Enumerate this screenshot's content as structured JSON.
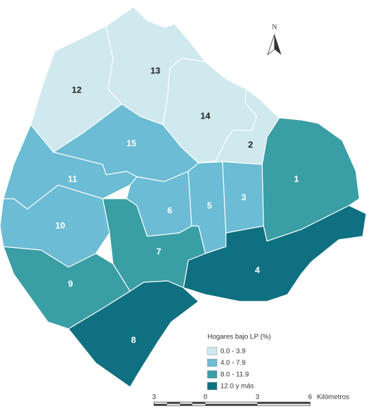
{
  "map": {
    "regions": [
      {
        "label": "1",
        "color": "#3a9ea5"
      },
      {
        "label": "2",
        "color": "#cfe9ef"
      },
      {
        "label": "3",
        "color": "#6bbcd4"
      },
      {
        "label": "4",
        "color": "#0e7080"
      },
      {
        "label": "5",
        "color": "#6bbcd4"
      },
      {
        "label": "6",
        "color": "#6bbcd4"
      },
      {
        "label": "7",
        "color": "#3a9ea5"
      },
      {
        "label": "8",
        "color": "#0e7080"
      },
      {
        "label": "9",
        "color": "#3a9ea5"
      },
      {
        "label": "10",
        "color": "#6bbcd4"
      },
      {
        "label": "11",
        "color": "#6bbcd4"
      },
      {
        "label": "12",
        "color": "#cfe9ef"
      },
      {
        "label": "13",
        "color": "#cfe9ef"
      },
      {
        "label": "14",
        "color": "#cfe9ef"
      },
      {
        "label": "15",
        "color": "#6bbcd4"
      }
    ],
    "north": "N",
    "legend": {
      "title": "Hogares bajo LP (%)",
      "items": [
        {
          "label": "0.0 - 3.9",
          "color": "#cfe9ef"
        },
        {
          "label": "4.0 - 7.9",
          "color": "#6bbcd4"
        },
        {
          "label": "8.0 - 11.9",
          "color": "#3a9ea5"
        },
        {
          "label": "12.0 y más",
          "color": "#0e7080"
        }
      ]
    },
    "scale": {
      "ticks": [
        "3",
        "0",
        "3",
        "6"
      ],
      "unit": "Kilómetros"
    }
  }
}
